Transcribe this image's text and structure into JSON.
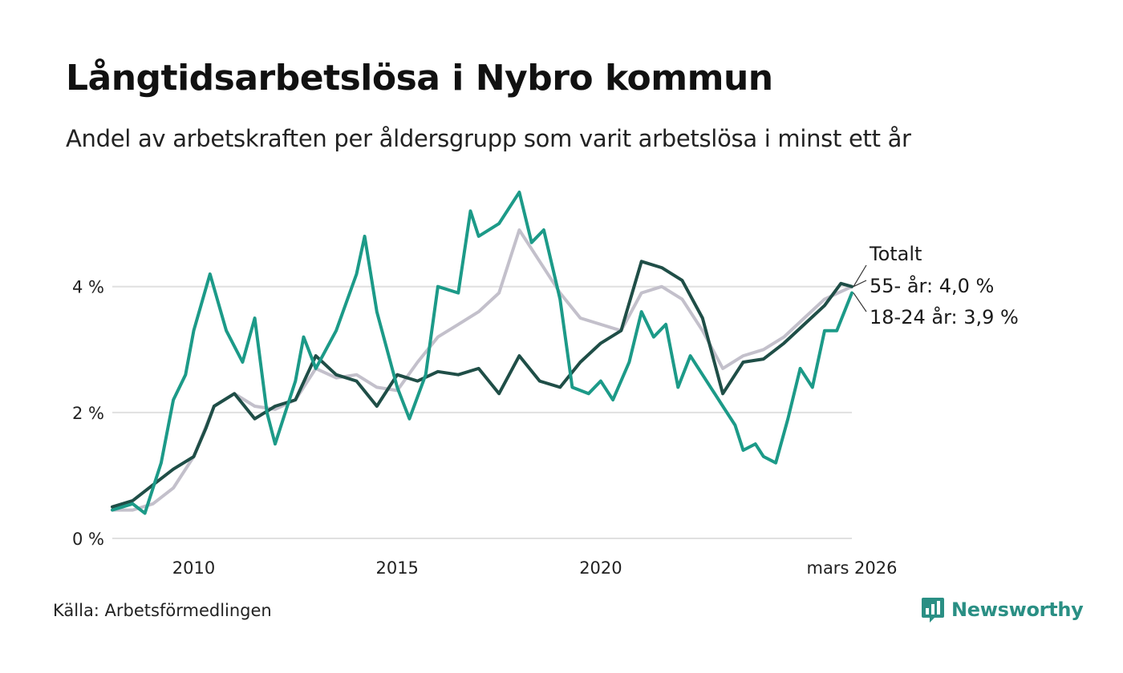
{
  "title": "Långtidsarbetslösa i Nybro kommun",
  "subtitle": "Andel av arbetskraften per åldersgrupp som varit arbetslösa i minst ett år",
  "source": "Källa: Arbetsförmedlingen",
  "brand": "Newsworthy",
  "colors": {
    "total": "#c3c0cb",
    "age55": "#1f4e47",
    "age1824": "#1c9a88",
    "grid": "#e0e0e0",
    "brand": "#2a8f84"
  },
  "chart_data": {
    "type": "line",
    "title": "Långtidsarbetslösa i Nybro kommun",
    "xlabel": "",
    "ylabel": "",
    "xlim": [
      2008.0,
      2026.17
    ],
    "ylim": [
      0,
      5.6
    ],
    "y_ticks": [
      {
        "value": 0,
        "label": "0 %"
      },
      {
        "value": 2,
        "label": "2 %"
      },
      {
        "value": 4,
        "label": "4 %"
      }
    ],
    "x_ticks": [
      {
        "value": 2010,
        "label": "2010"
      },
      {
        "value": 2015,
        "label": "2015"
      },
      {
        "value": 2020,
        "label": "2020"
      },
      {
        "value": 2026.17,
        "label": "mars 2026"
      }
    ],
    "end_labels": [
      {
        "series": "Totalt",
        "label": "Totalt"
      },
      {
        "series": "55- år",
        "label": "55- år: 4,0 %"
      },
      {
        "series": "18-24 år",
        "label": "18-24 år: 3,9 %"
      }
    ],
    "series": [
      {
        "name": "Totalt",
        "points": [
          [
            2008.0,
            0.45
          ],
          [
            2008.5,
            0.45
          ],
          [
            2009.0,
            0.55
          ],
          [
            2009.5,
            0.8
          ],
          [
            2010.0,
            1.3
          ],
          [
            2010.5,
            2.1
          ],
          [
            2011.0,
            2.3
          ],
          [
            2011.5,
            2.1
          ],
          [
            2012.0,
            2.05
          ],
          [
            2012.5,
            2.2
          ],
          [
            2013.0,
            2.7
          ],
          [
            2013.5,
            2.55
          ],
          [
            2014.0,
            2.6
          ],
          [
            2014.5,
            2.4
          ],
          [
            2015.0,
            2.35
          ],
          [
            2015.5,
            2.8
          ],
          [
            2016.0,
            3.2
          ],
          [
            2016.5,
            3.4
          ],
          [
            2017.0,
            3.6
          ],
          [
            2017.5,
            3.9
          ],
          [
            2018.0,
            4.9
          ],
          [
            2018.5,
            4.4
          ],
          [
            2019.0,
            3.9
          ],
          [
            2019.5,
            3.5
          ],
          [
            2020.0,
            3.4
          ],
          [
            2020.5,
            3.3
          ],
          [
            2021.0,
            3.9
          ],
          [
            2021.5,
            4.0
          ],
          [
            2022.0,
            3.8
          ],
          [
            2022.5,
            3.3
          ],
          [
            2023.0,
            2.7
          ],
          [
            2023.5,
            2.9
          ],
          [
            2024.0,
            3.0
          ],
          [
            2024.5,
            3.2
          ],
          [
            2025.0,
            3.5
          ],
          [
            2025.5,
            3.8
          ],
          [
            2026.17,
            4.0
          ]
        ]
      },
      {
        "name": "55- år",
        "points": [
          [
            2008.0,
            0.5
          ],
          [
            2008.5,
            0.6
          ],
          [
            2009.0,
            0.85
          ],
          [
            2009.5,
            1.1
          ],
          [
            2010.0,
            1.3
          ],
          [
            2010.3,
            1.75
          ],
          [
            2010.5,
            2.1
          ],
          [
            2011.0,
            2.3
          ],
          [
            2011.5,
            1.9
          ],
          [
            2012.0,
            2.1
          ],
          [
            2012.5,
            2.2
          ],
          [
            2013.0,
            2.9
          ],
          [
            2013.5,
            2.6
          ],
          [
            2014.0,
            2.5
          ],
          [
            2014.5,
            2.1
          ],
          [
            2015.0,
            2.6
          ],
          [
            2015.5,
            2.5
          ],
          [
            2016.0,
            2.65
          ],
          [
            2016.5,
            2.6
          ],
          [
            2017.0,
            2.7
          ],
          [
            2017.5,
            2.3
          ],
          [
            2018.0,
            2.9
          ],
          [
            2018.5,
            2.5
          ],
          [
            2019.0,
            2.4
          ],
          [
            2019.5,
            2.8
          ],
          [
            2020.0,
            3.1
          ],
          [
            2020.5,
            3.3
          ],
          [
            2021.0,
            4.4
          ],
          [
            2021.5,
            4.3
          ],
          [
            2022.0,
            4.1
          ],
          [
            2022.5,
            3.5
          ],
          [
            2023.0,
            2.3
          ],
          [
            2023.5,
            2.8
          ],
          [
            2024.0,
            2.85
          ],
          [
            2024.5,
            3.1
          ],
          [
            2025.0,
            3.4
          ],
          [
            2025.5,
            3.7
          ],
          [
            2025.9,
            4.05
          ],
          [
            2026.17,
            4.0
          ]
        ]
      },
      {
        "name": "18-24 år",
        "points": [
          [
            2008.0,
            0.45
          ],
          [
            2008.5,
            0.55
          ],
          [
            2008.8,
            0.4
          ],
          [
            2009.2,
            1.2
          ],
          [
            2009.5,
            2.2
          ],
          [
            2009.8,
            2.6
          ],
          [
            2010.0,
            3.3
          ],
          [
            2010.4,
            4.2
          ],
          [
            2010.8,
            3.3
          ],
          [
            2011.2,
            2.8
          ],
          [
            2011.5,
            3.5
          ],
          [
            2011.8,
            2.0
          ],
          [
            2012.0,
            1.5
          ],
          [
            2012.5,
            2.5
          ],
          [
            2012.7,
            3.2
          ],
          [
            2013.0,
            2.7
          ],
          [
            2013.5,
            3.3
          ],
          [
            2014.0,
            4.2
          ],
          [
            2014.2,
            4.8
          ],
          [
            2014.5,
            3.6
          ],
          [
            2015.0,
            2.4
          ],
          [
            2015.3,
            1.9
          ],
          [
            2015.7,
            2.6
          ],
          [
            2016.0,
            4.0
          ],
          [
            2016.5,
            3.9
          ],
          [
            2016.8,
            5.2
          ],
          [
            2017.0,
            4.8
          ],
          [
            2017.5,
            5.0
          ],
          [
            2018.0,
            5.5
          ],
          [
            2018.3,
            4.7
          ],
          [
            2018.6,
            4.9
          ],
          [
            2019.0,
            3.8
          ],
          [
            2019.3,
            2.4
          ],
          [
            2019.7,
            2.3
          ],
          [
            2020.0,
            2.5
          ],
          [
            2020.3,
            2.2
          ],
          [
            2020.7,
            2.8
          ],
          [
            2021.0,
            3.6
          ],
          [
            2021.3,
            3.2
          ],
          [
            2021.6,
            3.4
          ],
          [
            2021.9,
            2.4
          ],
          [
            2022.2,
            2.9
          ],
          [
            2022.5,
            2.6
          ],
          [
            2023.0,
            2.1
          ],
          [
            2023.3,
            1.8
          ],
          [
            2023.5,
            1.4
          ],
          [
            2023.8,
            1.5
          ],
          [
            2024.0,
            1.3
          ],
          [
            2024.3,
            1.2
          ],
          [
            2024.6,
            1.9
          ],
          [
            2024.9,
            2.7
          ],
          [
            2025.2,
            2.4
          ],
          [
            2025.5,
            3.3
          ],
          [
            2025.8,
            3.3
          ],
          [
            2026.17,
            3.9
          ]
        ]
      }
    ]
  }
}
